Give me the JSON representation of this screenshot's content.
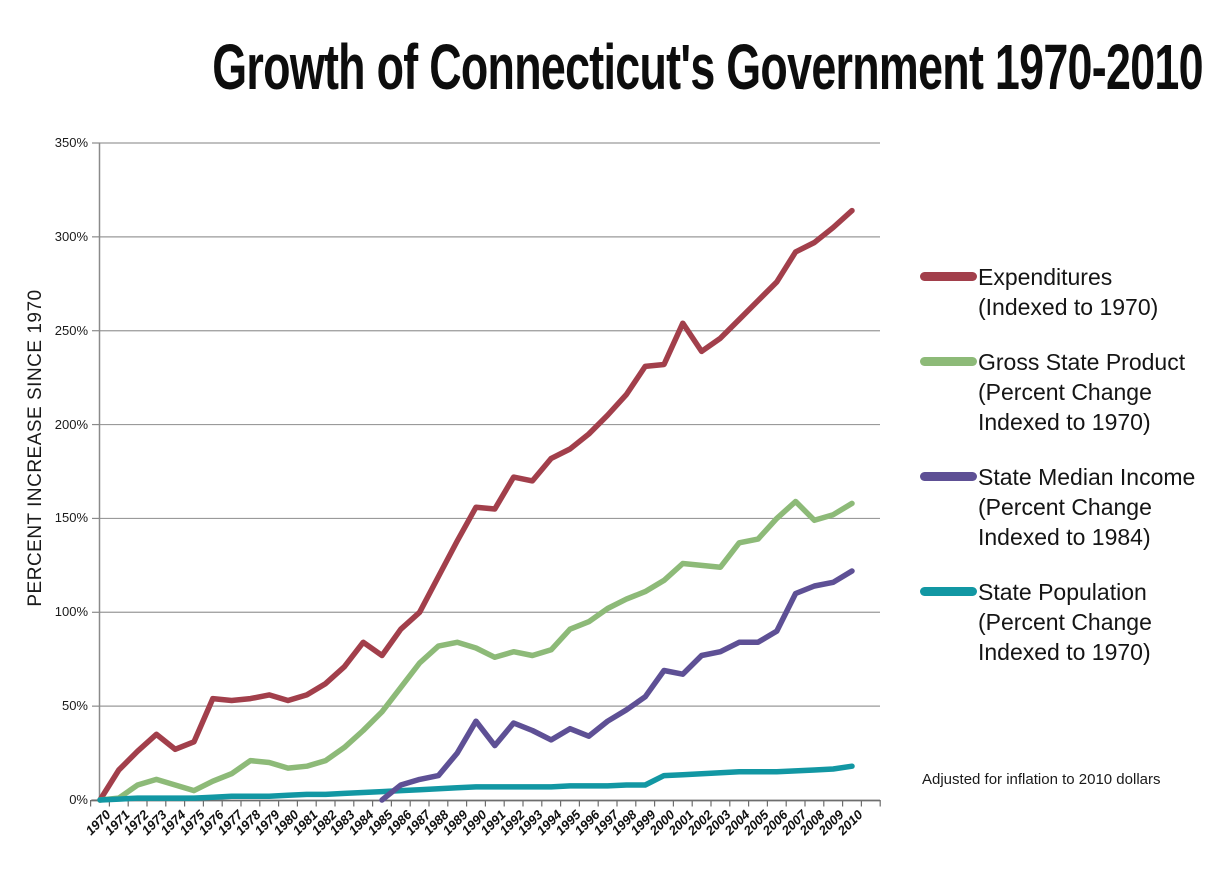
{
  "title": "Growth of Connecticut's Government 1970-2010",
  "footnote": "Adjusted for inflation to 2010 dollars",
  "y_axis_title": "PERCENT INCREASE SINCE 1970",
  "legend": {
    "items": [
      {
        "lines": [
          "Expenditures",
          "(Indexed to 1970)"
        ]
      },
      {
        "lines": [
          "Gross State Product",
          "(Percent Change",
          "Indexed to 1970)"
        ]
      },
      {
        "lines": [
          "State Median Income",
          "(Percent Change",
          "Indexed to 1984)"
        ]
      },
      {
        "lines": [
          "State Population",
          "(Percent Change",
          "Indexed to 1970)"
        ]
      }
    ]
  },
  "chart_data": {
    "type": "line",
    "title": "Growth of Connecticut's Government 1970-2010",
    "xlabel": "",
    "ylabel": "PERCENT INCREASE SINCE 1970",
    "ylim": [
      0,
      350
    ],
    "y_tick_labels": [
      "0%",
      "50%",
      "100%",
      "150%",
      "200%",
      "250%",
      "300%",
      "350%"
    ],
    "grid": true,
    "legend_position": "right",
    "footnote": "Adjusted for inflation to 2010 dollars",
    "x": [
      1970,
      1971,
      1972,
      1973,
      1974,
      1975,
      1976,
      1977,
      1978,
      1979,
      1980,
      1981,
      1982,
      1983,
      1984,
      1985,
      1986,
      1987,
      1988,
      1989,
      1990,
      1991,
      1992,
      1993,
      1994,
      1995,
      1996,
      1997,
      1998,
      1999,
      2000,
      2001,
      2002,
      2003,
      2004,
      2005,
      2006,
      2007,
      2008,
      2009,
      2010
    ],
    "series": [
      {
        "name": "Expenditures (Indexed to 1970)",
        "color": "#A23F4B",
        "start_year": 1970,
        "values": [
          0,
          16,
          26,
          35,
          27,
          31,
          54,
          53,
          54,
          56,
          53,
          56,
          62,
          71,
          84,
          77,
          91,
          100,
          119,
          138,
          156,
          155,
          172,
          170,
          182,
          187,
          195,
          205,
          216,
          231,
          232,
          254,
          239,
          246,
          256,
          266,
          276,
          292,
          297,
          305,
          314
        ]
      },
      {
        "name": "Gross State Product (Percent Change Indexed to 1970)",
        "color": "#8DBA78",
        "start_year": 1970,
        "values": [
          0,
          1,
          8,
          11,
          8,
          5,
          10,
          14,
          21,
          20,
          17,
          18,
          21,
          28,
          37,
          47,
          60,
          73,
          82,
          84,
          81,
          76,
          79,
          77,
          80,
          91,
          95,
          102,
          107,
          111,
          117,
          126,
          125,
          124,
          137,
          139,
          150,
          159,
          149,
          152,
          158
        ]
      },
      {
        "name": "State Median Income (Percent Change Indexed to 1984)",
        "color": "#5E5095",
        "start_year": 1985,
        "values": [
          0,
          8,
          11,
          13,
          25,
          42,
          29,
          41,
          37,
          32,
          38,
          34,
          42,
          48,
          55,
          69,
          67,
          77,
          79,
          84,
          84,
          90,
          110,
          114,
          116,
          122
        ]
      },
      {
        "name": "State Population (Percent Change Indexed to 1970)",
        "color": "#1297A3",
        "start_year": 1970,
        "values": [
          0,
          0.5,
          1,
          1,
          1,
          1,
          1.5,
          2,
          2,
          2,
          2.5,
          3,
          3,
          3.5,
          4,
          4.5,
          5,
          5.5,
          6,
          6.5,
          7,
          7,
          7,
          7,
          7,
          7.5,
          7.5,
          7.5,
          8,
          8,
          13,
          13.5,
          14,
          14.5,
          15,
          15,
          15,
          15.5,
          16,
          16.5,
          18
        ]
      }
    ]
  }
}
